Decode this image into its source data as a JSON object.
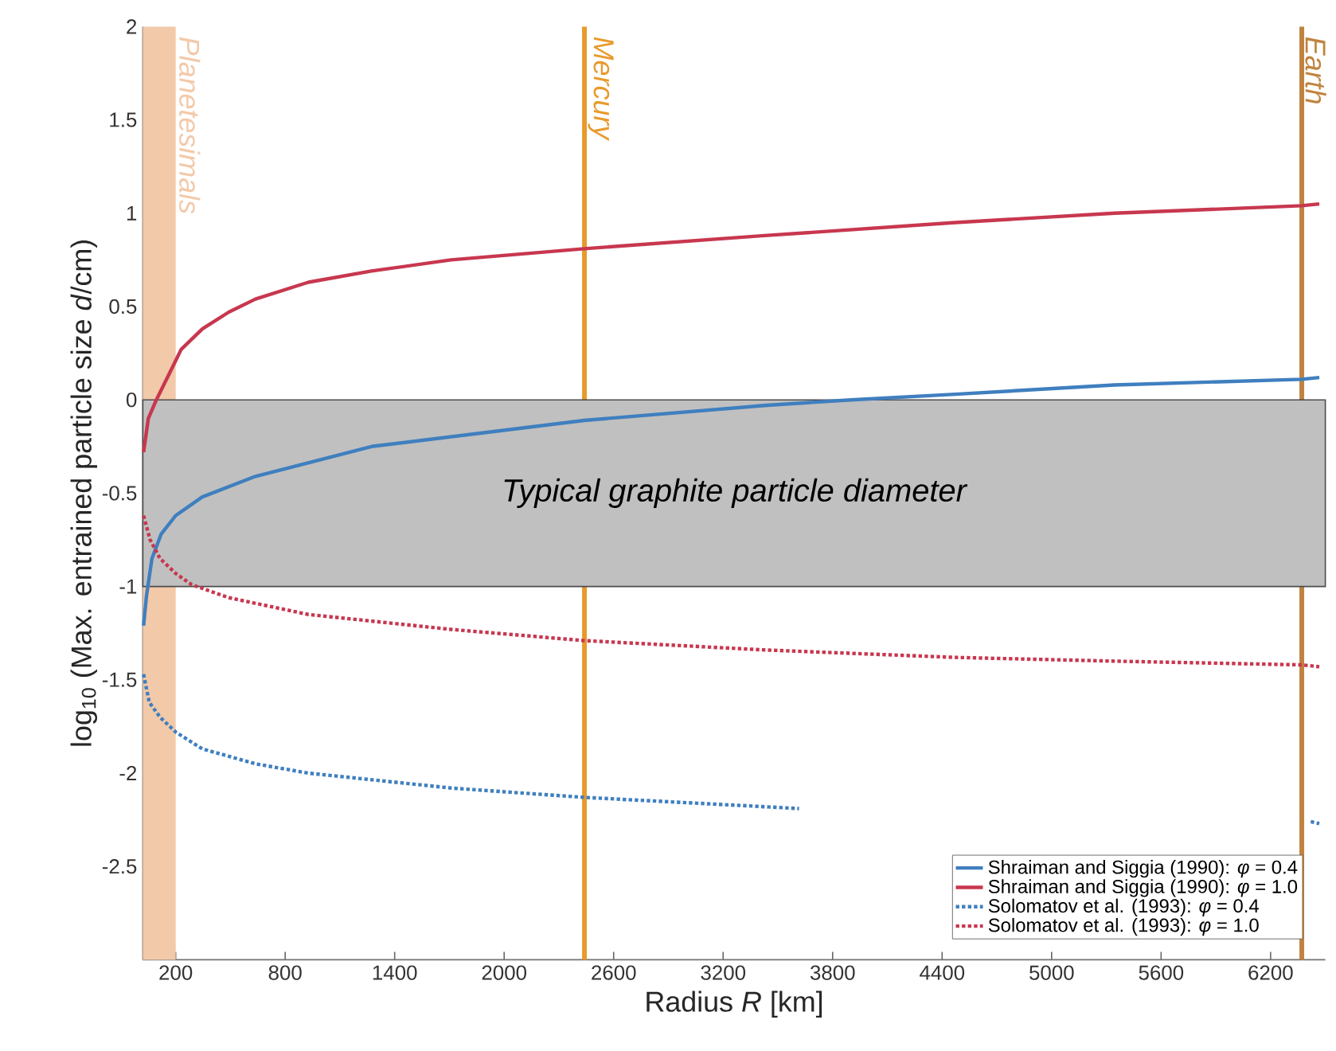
{
  "chart_data": {
    "type": "line",
    "xlabel": "Radius *R* [km]",
    "ylabel": "log$_{10}$ (Max. entrained particle size *d*/cm)",
    "xlim": [
      20,
      6500
    ],
    "ylim": [
      -3,
      2
    ],
    "xticks": [
      200,
      800,
      1400,
      2000,
      2600,
      3200,
      3800,
      4400,
      5000,
      5600,
      6200
    ],
    "yticks": [
      -2.5,
      -2,
      -1.5,
      -1,
      -0.5,
      0,
      0.5,
      1,
      1.5,
      2
    ],
    "legend": "bottom right",
    "bands": [
      {
        "axis": "x",
        "from": 20,
        "to": 200,
        "label": "Planetesimals",
        "color": "#f2c9a9"
      },
      {
        "axis": "y",
        "from": -1,
        "to": 0,
        "label": "Typical graphite particle diameter",
        "color": "#c0c0c0"
      }
    ],
    "ref_lines": [
      {
        "axis": "x",
        "value": 2440,
        "label": "Mercury",
        "color": "#e89a2c"
      },
      {
        "axis": "x",
        "value": 6371,
        "label": "Earth",
        "color": "#c0833f"
      }
    ],
    "series": [
      {
        "name": "Shraiman and Siggia (1990): *φ* = 0.4",
        "color": "#3f7fbf",
        "line_style": "solid",
        "x": [
          24,
          40,
          70,
          120,
          200,
          346,
          637,
          1273,
          2439,
          3427,
          3900,
          4473,
          5345,
          6371,
          6467
        ],
        "values": [
          -1.21,
          -1.05,
          -0.85,
          -0.72,
          -0.62,
          -0.52,
          -0.41,
          -0.25,
          -0.11,
          -0.03,
          0.0,
          0.03,
          0.08,
          0.11,
          0.12
        ]
      },
      {
        "name": "Shraiman and Siggia (1990): *φ* = 1.0",
        "color": "#c8374f",
        "line_style": "solid",
        "x": [
          24,
          50,
          94,
          200,
          230,
          346,
          491,
          637,
          927,
          1273,
          1709,
          2439,
          3427,
          4473,
          5345,
          6371,
          6467
        ],
        "values": [
          -0.28,
          -0.1,
          0.0,
          0.21,
          0.27,
          0.38,
          0.47,
          0.54,
          0.63,
          0.69,
          0.75,
          0.81,
          0.88,
          0.95,
          1.0,
          1.04,
          1.05
        ]
      },
      {
        "name": "Solomatov et al. (1993): *φ* = 0.4",
        "color": "#3f7fbf",
        "line_style": "dotted",
        "x": [
          24,
          55,
          114,
          200,
          346,
          637,
          927,
          1709,
          2439,
          3427,
          3616,
          4473,
          5345,
          6420,
          6467
        ],
        "values": [
          -1.47,
          -1.62,
          -1.7,
          -1.78,
          -1.87,
          -1.95,
          -2.0,
          -2.08,
          -2.13,
          -2.18,
          -2.19,
          null,
          null,
          -2.26,
          -2.27
        ]
      },
      {
        "name": "Solomatov et al. (1993): *φ* = 1.0",
        "color": "#c8374f",
        "line_style": "dotted",
        "x": [
          24,
          60,
          114,
          200,
          287,
          491,
          927,
          1709,
          2439,
          3427,
          4473,
          5345,
          6371,
          6467
        ],
        "values": [
          -0.62,
          -0.75,
          -0.85,
          -0.93,
          -0.99,
          -1.06,
          -1.15,
          -1.23,
          -1.29,
          -1.34,
          -1.38,
          -1.4,
          -1.42,
          -1.43
        ]
      }
    ]
  }
}
